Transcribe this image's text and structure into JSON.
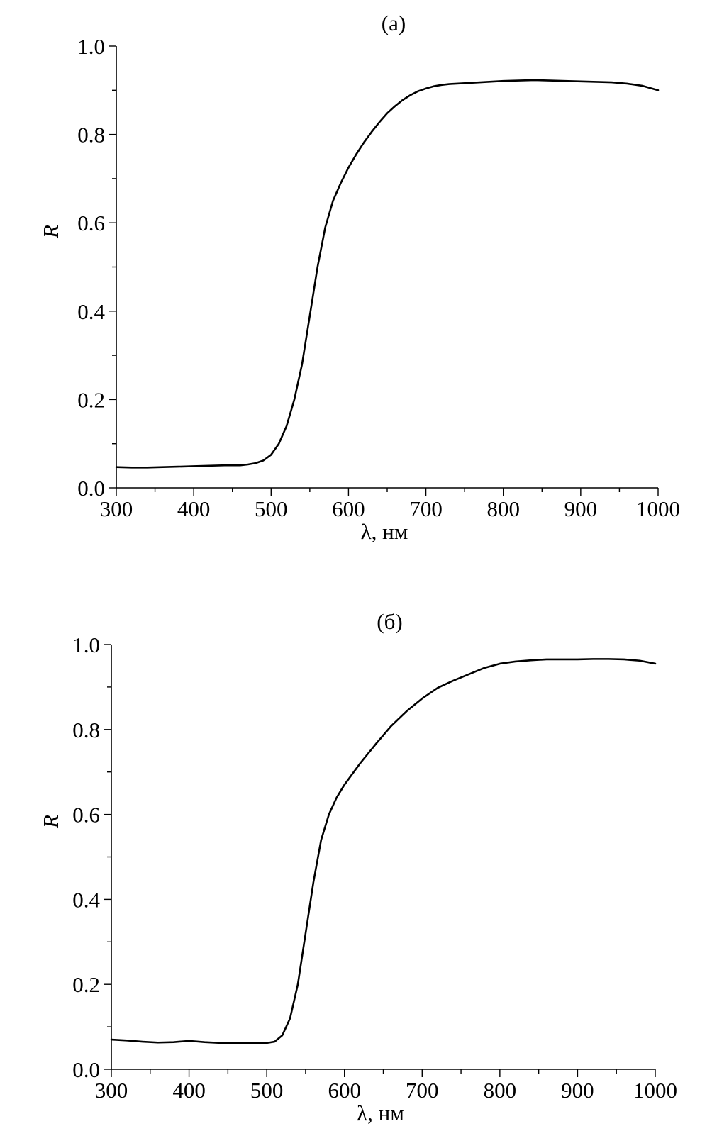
{
  "chart_data": [
    {
      "type": "line",
      "title": "(a)",
      "xlabel": "λ, нм",
      "ylabel": "R",
      "xlim": [
        300,
        1000
      ],
      "ylim": [
        0.0,
        1.0
      ],
      "x_ticks": [
        "300",
        "400",
        "500",
        "600",
        "700",
        "800",
        "900",
        "1000"
      ],
      "y_ticks": [
        "0.0",
        "0.2",
        "0.4",
        "0.6",
        "0.8",
        "1.0"
      ],
      "grid": false,
      "line_color": "#000000",
      "series": [
        {
          "x": [
            300,
            320,
            340,
            360,
            380,
            400,
            420,
            440,
            460,
            470,
            480,
            490,
            500,
            510,
            520,
            530,
            540,
            550,
            560,
            570,
            580,
            590,
            600,
            610,
            620,
            630,
            640,
            650,
            660,
            670,
            680,
            690,
            700,
            710,
            720,
            730,
            740,
            750,
            760,
            780,
            800,
            820,
            840,
            860,
            880,
            900,
            920,
            940,
            960,
            980,
            1000
          ],
          "y": [
            0.047,
            0.046,
            0.046,
            0.047,
            0.048,
            0.049,
            0.05,
            0.051,
            0.051,
            0.053,
            0.056,
            0.062,
            0.075,
            0.1,
            0.14,
            0.2,
            0.28,
            0.39,
            0.5,
            0.59,
            0.65,
            0.69,
            0.725,
            0.755,
            0.782,
            0.806,
            0.828,
            0.848,
            0.864,
            0.878,
            0.889,
            0.898,
            0.904,
            0.909,
            0.912,
            0.914,
            0.915,
            0.916,
            0.917,
            0.919,
            0.921,
            0.922,
            0.923,
            0.922,
            0.921,
            0.92,
            0.919,
            0.918,
            0.915,
            0.91,
            0.9
          ]
        }
      ]
    },
    {
      "type": "line",
      "title": "(б)",
      "xlabel": "λ, нм",
      "ylabel": "R",
      "xlim": [
        300,
        1000
      ],
      "ylim": [
        0.0,
        1.0
      ],
      "x_ticks": [
        "300",
        "400",
        "500",
        "600",
        "700",
        "800",
        "900",
        "1000"
      ],
      "y_ticks": [
        "0.0",
        "0.2",
        "0.4",
        "0.6",
        "0.8",
        "1.0"
      ],
      "grid": false,
      "line_color": "#000000",
      "series": [
        {
          "x": [
            300,
            320,
            340,
            360,
            380,
            400,
            420,
            440,
            460,
            480,
            500,
            510,
            520,
            530,
            540,
            550,
            560,
            570,
            580,
            590,
            600,
            620,
            640,
            660,
            680,
            700,
            720,
            740,
            760,
            780,
            800,
            820,
            840,
            860,
            880,
            900,
            920,
            940,
            960,
            980,
            1000
          ],
          "y": [
            0.07,
            0.068,
            0.065,
            0.063,
            0.064,
            0.067,
            0.064,
            0.062,
            0.062,
            0.062,
            0.062,
            0.065,
            0.08,
            0.12,
            0.2,
            0.32,
            0.44,
            0.54,
            0.6,
            0.64,
            0.67,
            0.72,
            0.765,
            0.808,
            0.843,
            0.873,
            0.898,
            0.915,
            0.93,
            0.945,
            0.955,
            0.96,
            0.963,
            0.965,
            0.965,
            0.965,
            0.966,
            0.966,
            0.965,
            0.962,
            0.955
          ]
        }
      ]
    }
  ]
}
